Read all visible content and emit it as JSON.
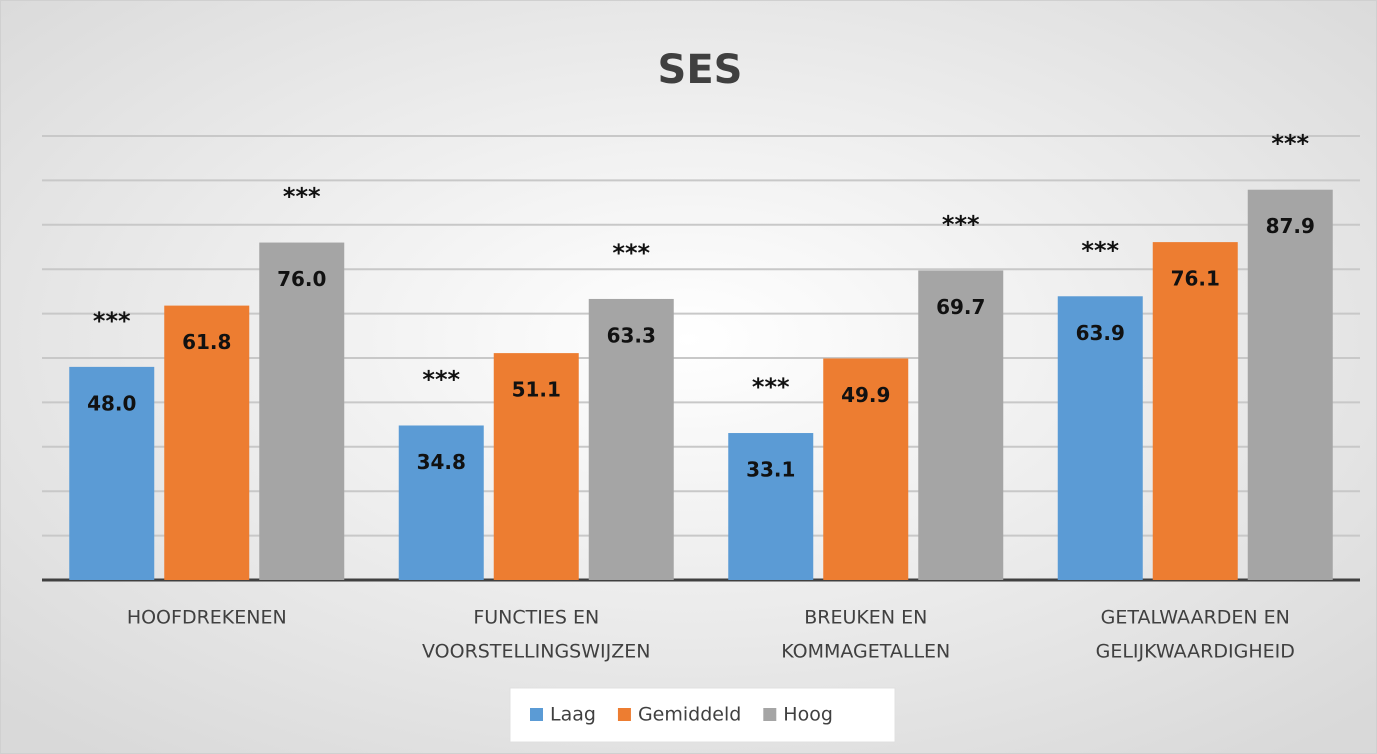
{
  "chart_data": {
    "type": "bar",
    "title": "SES",
    "categories": [
      [
        "HOOFDREKENEN"
      ],
      [
        "FUNCTIES EN",
        "VOORSTELLINGSWIJZEN"
      ],
      [
        "BREUKEN EN",
        "KOMMAGETALLEN"
      ],
      [
        "GETALWAARDEN EN",
        "GELIJKWAARDIGHEID"
      ]
    ],
    "series": [
      {
        "name": "Laag",
        "color": "#5b9bd5",
        "values": [
          48.0,
          34.8,
          33.1,
          63.9
        ],
        "value_labels": [
          "48.0",
          "34.8",
          "33.1",
          "63.9"
        ],
        "annotations": [
          "***",
          "***",
          "***",
          "***"
        ]
      },
      {
        "name": "Gemiddeld",
        "color": "#ed7d31",
        "values": [
          61.8,
          51.1,
          49.9,
          76.1
        ],
        "value_labels": [
          "61.8",
          "51.1",
          "49.9",
          "76.1"
        ]
      },
      {
        "name": "Hoog",
        "color": "#a5a5a5",
        "values": [
          76.0,
          63.3,
          69.7,
          87.9
        ],
        "value_labels": [
          "76.0",
          "63.3",
          "69.7",
          "87.9"
        ],
        "annotations": [
          "***",
          "***",
          "***",
          "***"
        ]
      }
    ],
    "ylim": [
      0,
      100
    ],
    "yticks": [
      0,
      10,
      20,
      30,
      40,
      50,
      60,
      70,
      80,
      90,
      100
    ],
    "grid": true,
    "legend": "bottom"
  }
}
